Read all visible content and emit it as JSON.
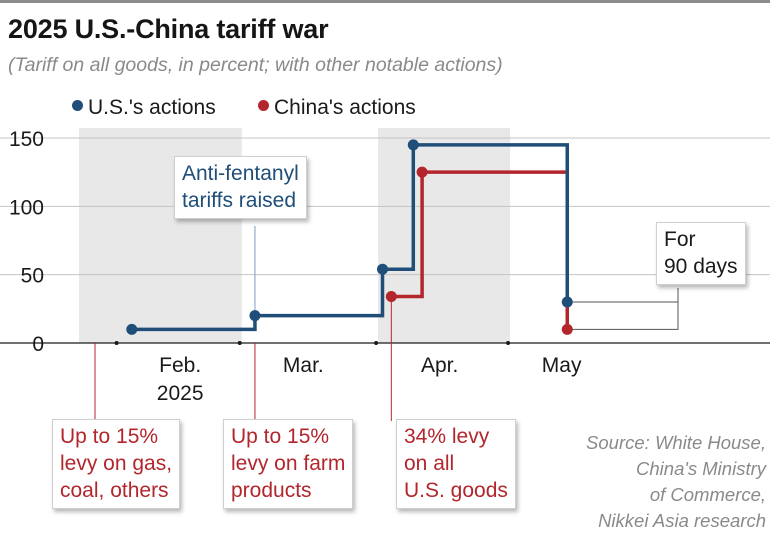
{
  "title": "2025 U.S.-China tariff war",
  "subtitle": "(Tariff on all goods, in percent; with other notable actions)",
  "colors": {
    "us": "#1f4e79",
    "china": "#b3262c",
    "shade": "#e8e8e8",
    "grid": "#c4c4c4"
  },
  "chart_data": {
    "type": "line",
    "step": true,
    "ylim": [
      0,
      150
    ],
    "yticks": [
      0,
      50,
      100,
      150
    ],
    "xlabels": [
      {
        "label": "Feb.",
        "sub": "2025"
      },
      {
        "label": "Mar.",
        "sub": ""
      },
      {
        "label": "Apr.",
        "sub": ""
      },
      {
        "label": "May",
        "sub": ""
      }
    ],
    "legend_position": "top-left",
    "grid": true,
    "series": [
      {
        "name": "U.S.'s actions",
        "color": "#1f4e79",
        "points": [
          {
            "x": "2025-02-04",
            "y": 10
          },
          {
            "x": "2025-03-04",
            "y": 20
          },
          {
            "x": "2025-04-02",
            "y": 54
          },
          {
            "x": "2025-04-09",
            "y": 145
          },
          {
            "x": "2025-05-14",
            "y": 30
          }
        ],
        "end_x": "2025-05-14"
      },
      {
        "name": "China's actions",
        "color": "#b3262c",
        "points": [
          {
            "x": "2025-04-04",
            "y": 34
          },
          {
            "x": "2025-04-11",
            "y": 125
          },
          {
            "x": "2025-05-14",
            "y": 10
          }
        ],
        "end_x": "2025-05-14"
      }
    ],
    "annotations": {
      "us_fentanyl": [
        "Anti-fentanyl",
        "tariffs raised"
      ],
      "china_feb": [
        "Up to 15%",
        "levy on gas,",
        "coal, others"
      ],
      "china_mar": [
        "Up to 15%",
        "levy on farm",
        "products"
      ],
      "china_apr": [
        "34% levy",
        "on all",
        "U.S. goods"
      ],
      "truce": [
        "For",
        "90 days"
      ]
    }
  },
  "source": [
    "Source: White House,",
    "China's Ministry",
    "of Commerce,",
    "Nikkei Asia research"
  ]
}
